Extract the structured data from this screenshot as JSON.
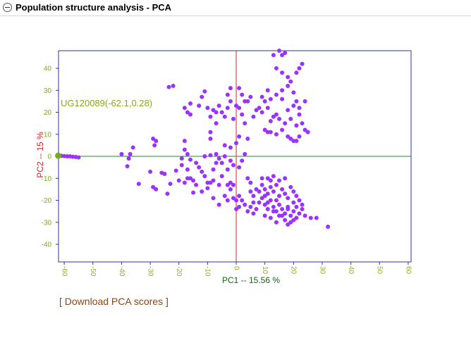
{
  "section": {
    "title": "Population structure analysis - PCA",
    "collapse_icon": "minus-circle-icon"
  },
  "download": {
    "label": "[ Download PCA scores ]"
  },
  "colors": {
    "points": "#9933ff",
    "highlight": "#77aa22",
    "annotation": "#88aa11",
    "zero_x": "#dd2222",
    "zero_y": "#228822",
    "frame": "#333399",
    "ylabel": "#dd2222",
    "xlabel": "#116611",
    "ytick": "#77aa22",
    "xtick": "#99aa22"
  },
  "chart_data": {
    "type": "scatter",
    "title": "",
    "xlabel": "PC1 -- 15.56 %",
    "ylabel": "PC2 -- 15 %",
    "xlim": [
      -62,
      61
    ],
    "ylim": [
      -48,
      48
    ],
    "xticks": [
      -60,
      -50,
      -40,
      -30,
      -20,
      -10,
      0,
      10,
      20,
      30,
      40,
      50,
      60
    ],
    "yticks": [
      -40,
      -30,
      -20,
      -10,
      0,
      10,
      20,
      30,
      40
    ],
    "grid": false,
    "annotation": {
      "text": "UG120089(-62.1,0.28)",
      "x": -62.1,
      "y": 0.28
    },
    "series": [
      {
        "points": [
          [
            -62.1,
            0.28
          ],
          [
            -61,
            0.2
          ],
          [
            -60,
            0.1
          ],
          [
            -59,
            0.0
          ],
          [
            -58,
            0
          ],
          [
            -57,
            -0.2
          ],
          [
            -56,
            -0.3
          ],
          [
            -55,
            -0.5
          ],
          [
            -40,
            1
          ],
          [
            -37,
            1
          ],
          [
            -37.5,
            -1
          ],
          [
            -38,
            -4.5
          ],
          [
            -34,
            -12.5
          ],
          [
            -36,
            4
          ],
          [
            -29,
            8
          ],
          [
            -28,
            7
          ],
          [
            -28.5,
            5
          ],
          [
            -25,
            -8
          ],
          [
            -26,
            -7.5
          ],
          [
            -28,
            -15
          ],
          [
            -22,
            32
          ],
          [
            -23.5,
            31.5
          ],
          [
            -30,
            -7
          ],
          [
            -29,
            -14
          ],
          [
            -24,
            -17
          ],
          [
            -23,
            -12.5
          ],
          [
            -21,
            -6.5
          ],
          [
            -20,
            -11
          ],
          [
            -18,
            -12
          ],
          [
            -19,
            -1
          ],
          [
            -19,
            -4
          ],
          [
            -17,
            -10
          ],
          [
            -16,
            -10
          ],
          [
            -15,
            -11
          ],
          [
            -15,
            -16.5
          ],
          [
            -17,
            -6
          ],
          [
            -18,
            3
          ],
          [
            -17,
            1
          ],
          [
            -16,
            -1.5
          ],
          [
            -14,
            -3
          ],
          [
            -13,
            -5
          ],
          [
            -12,
            -7
          ],
          [
            -11,
            -9
          ],
          [
            -10,
            -12
          ],
          [
            -12,
            -16
          ],
          [
            -8,
            -19
          ],
          [
            -10,
            -14.5
          ],
          [
            -8,
            -11
          ],
          [
            -6,
            -13
          ],
          [
            -4,
            -18
          ],
          [
            -3,
            -20
          ],
          [
            -6,
            -22
          ],
          [
            -5,
            -9
          ],
          [
            -3,
            -6
          ],
          [
            -2,
            -15
          ],
          [
            0,
            -20
          ],
          [
            -1,
            -13
          ],
          [
            -3,
            -13
          ],
          [
            -2,
            -2
          ],
          [
            -4,
            0
          ],
          [
            -7,
            1
          ],
          [
            -9,
            0.5
          ],
          [
            -11,
            0
          ],
          [
            -6,
            -1
          ],
          [
            -5,
            -3
          ],
          [
            -14,
            -13
          ],
          [
            -9,
            -12
          ],
          [
            -8,
            -6
          ],
          [
            -7,
            -3
          ],
          [
            -1,
            -4
          ],
          [
            -2,
            -12
          ],
          [
            -1,
            -19
          ],
          [
            1,
            -18
          ],
          [
            1,
            -5
          ],
          [
            2,
            -2
          ],
          [
            3,
            1
          ],
          [
            4,
            -10
          ],
          [
            5,
            -12
          ],
          [
            5,
            -16
          ],
          [
            6,
            -18
          ],
          [
            6,
            -21
          ],
          [
            -18,
            22
          ],
          [
            -16,
            24
          ],
          [
            -17,
            20
          ],
          [
            -13,
            23
          ],
          [
            -12,
            27
          ],
          [
            -11,
            29.5
          ],
          [
            -10,
            22
          ],
          [
            -9,
            18
          ],
          [
            -8,
            21
          ],
          [
            -7,
            20
          ],
          [
            -6,
            23
          ],
          [
            -5,
            20
          ],
          [
            -4,
            18
          ],
          [
            -3,
            22
          ],
          [
            -2,
            25
          ],
          [
            -1,
            17
          ],
          [
            0,
            23
          ],
          [
            1,
            22
          ],
          [
            2,
            19
          ],
          [
            3,
            15
          ],
          [
            4,
            25
          ],
          [
            5,
            27
          ],
          [
            6,
            18
          ],
          [
            7,
            21
          ],
          [
            8,
            22
          ],
          [
            9,
            20
          ],
          [
            10,
            25
          ],
          [
            11,
            22
          ],
          [
            12,
            16
          ],
          [
            13,
            18
          ],
          [
            14,
            19
          ],
          [
            15,
            17
          ],
          [
            16,
            26
          ],
          [
            17,
            15
          ],
          [
            18,
            21
          ],
          [
            19,
            17
          ],
          [
            20,
            23
          ],
          [
            21,
            14
          ],
          [
            22,
            19
          ],
          [
            23,
            15
          ],
          [
            24,
            12
          ],
          [
            25,
            11
          ],
          [
            -2,
            31
          ],
          [
            -3,
            28
          ],
          [
            1,
            31
          ],
          [
            2,
            28
          ],
          [
            3,
            25
          ],
          [
            9,
            27
          ],
          [
            11,
            30
          ],
          [
            12,
            26
          ],
          [
            14,
            28
          ],
          [
            16,
            30
          ],
          [
            18,
            32
          ],
          [
            20,
            29
          ],
          [
            21,
            25
          ],
          [
            22,
            22
          ],
          [
            24,
            25
          ],
          [
            15,
            48
          ],
          [
            16,
            46
          ],
          [
            17,
            47
          ],
          [
            13,
            46
          ],
          [
            14,
            40
          ],
          [
            16,
            38
          ],
          [
            18,
            36
          ],
          [
            19,
            34
          ],
          [
            21,
            38
          ],
          [
            23,
            42
          ],
          [
            22,
            40
          ],
          [
            10,
            12
          ],
          [
            11,
            11
          ],
          [
            12,
            11
          ],
          [
            14,
            10
          ],
          [
            16,
            12
          ],
          [
            18,
            9
          ],
          [
            19,
            8
          ],
          [
            20,
            7
          ],
          [
            21,
            7
          ],
          [
            22,
            9
          ],
          [
            -9,
            8
          ],
          [
            -4,
            5
          ],
          [
            -2,
            4
          ],
          [
            0,
            6
          ],
          [
            1,
            9
          ],
          [
            4,
            8
          ],
          [
            -18,
            7
          ],
          [
            -9,
            11
          ],
          [
            -7,
            15
          ],
          [
            -16,
            19
          ],
          [
            7,
            -15
          ],
          [
            8,
            -16
          ],
          [
            9,
            -13
          ],
          [
            10,
            -15
          ],
          [
            11,
            -17
          ],
          [
            12,
            -14
          ],
          [
            13,
            -16
          ],
          [
            14,
            -13
          ],
          [
            15,
            -18
          ],
          [
            16,
            -15
          ],
          [
            17,
            -17
          ],
          [
            18,
            -19
          ],
          [
            19,
            -14
          ],
          [
            20,
            -16
          ],
          [
            21,
            -18
          ],
          [
            22,
            -20
          ],
          [
            23,
            -22
          ],
          [
            8,
            -21
          ],
          [
            9,
            -19
          ],
          [
            10,
            -22
          ],
          [
            11,
            -24
          ],
          [
            12,
            -20
          ],
          [
            13,
            -23
          ],
          [
            14,
            -25
          ],
          [
            15,
            -22
          ],
          [
            16,
            -24
          ],
          [
            17,
            -26
          ],
          [
            18,
            -23
          ],
          [
            19,
            -27
          ],
          [
            20,
            -25
          ],
          [
            21,
            -28
          ],
          [
            22,
            -26
          ],
          [
            23,
            -24
          ],
          [
            24,
            -27
          ],
          [
            26,
            -28
          ],
          [
            28,
            -28
          ],
          [
            32,
            -32
          ],
          [
            10,
            -27
          ],
          [
            12,
            -28
          ],
          [
            14,
            -30
          ],
          [
            16,
            -27
          ],
          [
            17,
            -29
          ],
          [
            18,
            -31
          ],
          [
            19,
            -30
          ],
          [
            20,
            -29
          ],
          [
            7,
            -24
          ],
          [
            6,
            -26
          ],
          [
            5,
            -23
          ],
          [
            4,
            -25
          ],
          [
            3,
            -22
          ],
          [
            2,
            -20
          ],
          [
            1,
            -23
          ],
          [
            0,
            -24
          ],
          [
            9,
            -10
          ],
          [
            11,
            -10
          ],
          [
            13,
            -9
          ],
          [
            15,
            -11
          ],
          [
            17,
            -10
          ],
          [
            12,
            -11
          ],
          [
            10,
            -18
          ],
          [
            14,
            -20
          ],
          [
            18,
            -24
          ],
          [
            20,
            -21
          ],
          [
            21,
            -23
          ],
          [
            15,
            -27
          ],
          [
            13,
            -25
          ],
          [
            11,
            -21
          ]
        ]
      }
    ]
  }
}
